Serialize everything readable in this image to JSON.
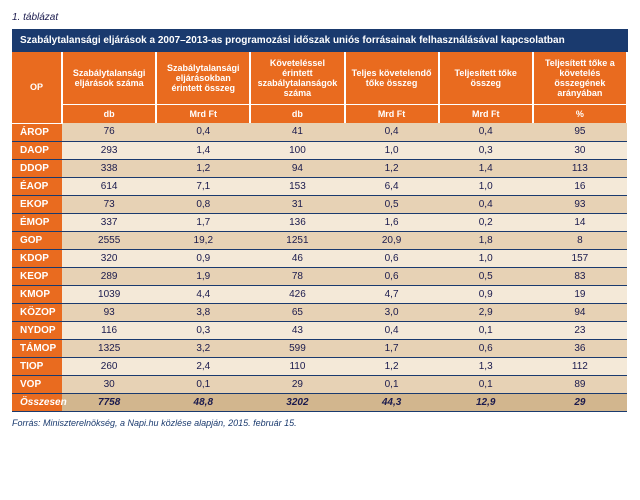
{
  "table_label": "1. táblázat",
  "title": "Szabálytalansági eljárások a 2007–2013-as programozási időszak uniós forrásainak felhasználásával kapcsolatban",
  "columns": {
    "op": "OP",
    "c1": "Szabálytalansági eljárások száma",
    "c2": "Szabálytalansági eljárásokban érintett összeg",
    "c3": "Követeléssel érintett szabálytalanságok száma",
    "c4": "Teljes követelendő tőke összeg",
    "c5": "Teljesített tőke összeg",
    "c6": "Teljesített tőke a követelés összegének arányában"
  },
  "units": {
    "u1": "db",
    "u2": "Mrd Ft",
    "u3": "db",
    "u4": "Mrd Ft",
    "u5": "Mrd Ft",
    "u6": "%"
  },
  "rows": [
    {
      "op": "ÁROP",
      "v": [
        "76",
        "0,4",
        "41",
        "0,4",
        "0,4",
        "95"
      ]
    },
    {
      "op": "DAOP",
      "v": [
        "293",
        "1,4",
        "100",
        "1,0",
        "0,3",
        "30"
      ]
    },
    {
      "op": "DDOP",
      "v": [
        "338",
        "1,2",
        "94",
        "1,2",
        "1,4",
        "113"
      ]
    },
    {
      "op": "ÉAOP",
      "v": [
        "614",
        "7,1",
        "153",
        "6,4",
        "1,0",
        "16"
      ]
    },
    {
      "op": "EKOP",
      "v": [
        "73",
        "0,8",
        "31",
        "0,5",
        "0,4",
        "93"
      ]
    },
    {
      "op": "ÉMOP",
      "v": [
        "337",
        "1,7",
        "136",
        "1,6",
        "0,2",
        "14"
      ]
    },
    {
      "op": "GOP",
      "v": [
        "2555",
        "19,2",
        "1251",
        "20,9",
        "1,8",
        "8"
      ]
    },
    {
      "op": "KDOP",
      "v": [
        "320",
        "0,9",
        "46",
        "0,6",
        "1,0",
        "157"
      ]
    },
    {
      "op": "KEOP",
      "v": [
        "289",
        "1,9",
        "78",
        "0,6",
        "0,5",
        "83"
      ]
    },
    {
      "op": "KMOP",
      "v": [
        "1039",
        "4,4",
        "426",
        "4,7",
        "0,9",
        "19"
      ]
    },
    {
      "op": "KÖZOP",
      "v": [
        "93",
        "3,8",
        "65",
        "3,0",
        "2,9",
        "94"
      ]
    },
    {
      "op": "NYDOP",
      "v": [
        "116",
        "0,3",
        "43",
        "0,4",
        "0,1",
        "23"
      ]
    },
    {
      "op": "TÁMOP",
      "v": [
        "1325",
        "3,2",
        "599",
        "1,7",
        "0,6",
        "36"
      ]
    },
    {
      "op": "TIOP",
      "v": [
        "260",
        "2,4",
        "110",
        "1,2",
        "1,3",
        "112"
      ]
    },
    {
      "op": "VOP",
      "v": [
        "30",
        "0,1",
        "29",
        "0,1",
        "0,1",
        "89"
      ]
    }
  ],
  "total": {
    "op": "Összesen",
    "v": [
      "7758",
      "48,8",
      "3202",
      "44,3",
      "12,9",
      "29"
    ]
  },
  "source": "Forrás: Miniszterelnökség, a Napi.hu közlése alapján, 2015. február 15."
}
